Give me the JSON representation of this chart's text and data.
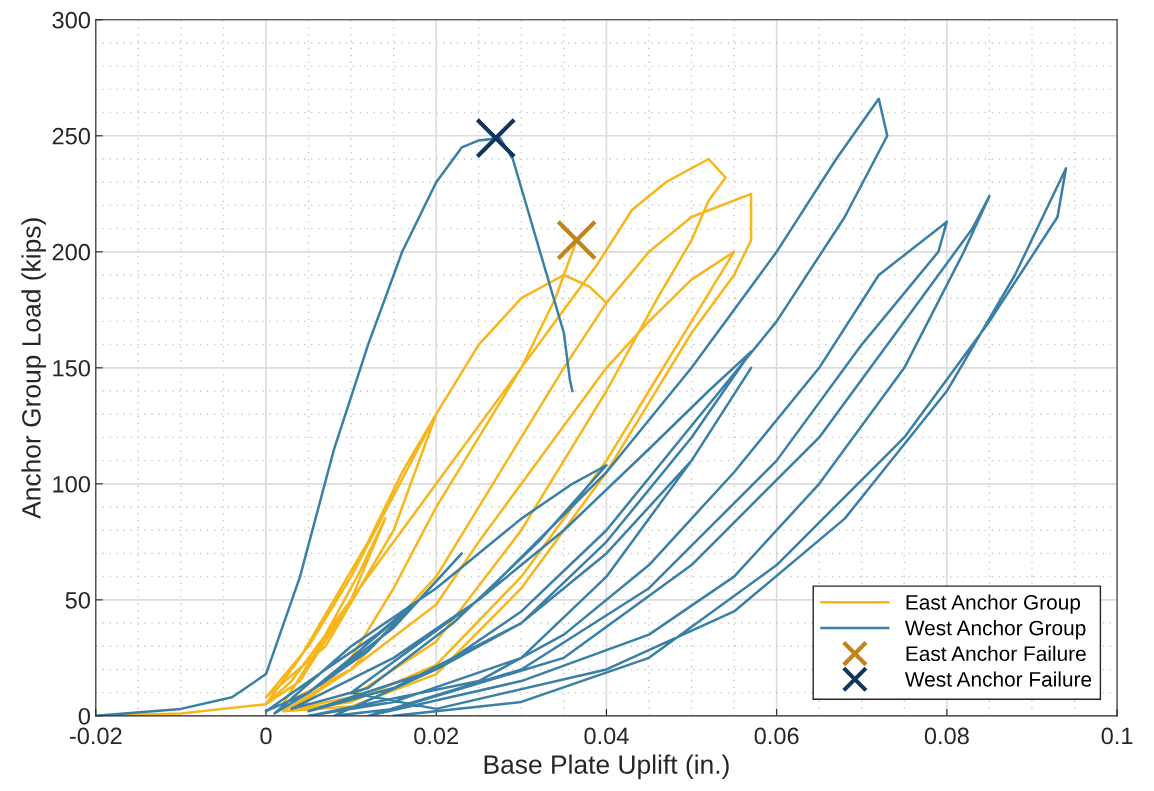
{
  "chart_data": {
    "type": "line",
    "xlabel": "Base Plate Uplift (in.)",
    "ylabel": "Anchor Group Load (kips)",
    "xlim": [
      -0.02,
      0.1
    ],
    "xticks": [
      -0.02,
      0,
      0.02,
      0.04,
      0.06,
      0.08,
      0.1
    ],
    "ylim": [
      0,
      300
    ],
    "yticks": [
      0,
      50,
      100,
      150,
      200,
      250,
      300
    ],
    "grid": true,
    "legend": "bottom right",
    "series": [
      {
        "name": "East Anchor Group",
        "color": "#f7b61c",
        "marker": "none",
        "x": [
          -0.02,
          -0.01,
          0,
          0.003,
          0.007,
          0.011,
          0.014,
          0.01,
          0.004,
          0,
          0.004,
          0.008,
          0.012,
          0.016,
          0.02,
          0.015,
          0.007,
          0,
          0.005,
          0.01,
          0.015,
          0.02,
          0.025,
          0.03,
          0.035,
          0.038,
          0.04,
          0.035,
          0.03,
          0.02,
          0.01,
          0.002,
          0.008,
          0.015,
          0.02,
          0.025,
          0.03,
          0.035,
          0.039,
          0.043,
          0.047,
          0.05,
          0.052,
          0.054,
          0.052,
          0.05,
          0.046,
          0.04,
          0.035,
          0.03,
          0.02,
          0.01,
          0.003,
          0.01,
          0.02,
          0.025,
          0.03,
          0.035,
          0.04,
          0.045,
          0.05,
          0.057,
          0.057,
          0.055,
          0.05,
          0.045,
          0.04,
          0.03,
          0.02,
          0.01,
          0.002,
          0.01,
          0.02,
          0.025,
          0.03,
          0.035,
          0.04,
          0.045,
          0.05,
          0.055,
          0.05,
          0.045,
          0.04,
          0.03,
          0.02,
          0.01,
          0.004,
          0.01,
          0.015,
          0.02,
          0.025,
          0.03,
          0.034,
          0.0365
        ],
        "values": [
          0,
          1,
          5,
          15,
          35,
          62,
          85,
          50,
          15,
          5,
          25,
          50,
          75,
          105,
          130,
          80,
          30,
          8,
          30,
          60,
          95,
          130,
          160,
          180,
          190,
          185,
          178,
          150,
          120,
          60,
          20,
          5,
          40,
          75,
          100,
          125,
          150,
          175,
          195,
          218,
          230,
          236,
          240,
          232,
          222,
          205,
          180,
          140,
          110,
          80,
          32,
          8,
          3,
          20,
          60,
          90,
          120,
          150,
          178,
          200,
          215,
          225,
          205,
          190,
          165,
          135,
          105,
          55,
          18,
          4,
          2,
          20,
          48,
          75,
          100,
          125,
          150,
          170,
          188,
          200,
          170,
          140,
          110,
          60,
          22,
          6,
          3,
          25,
          55,
          90,
          120,
          150,
          180,
          205
        ]
      },
      {
        "name": "West Anchor Group",
        "color": "#3a7fa5",
        "marker": "none",
        "x": [
          0,
          0.005,
          0.01,
          0.017,
          0.012,
          0.005,
          0,
          0.007,
          0.013,
          0.018,
          0.023,
          0.015,
          0.005,
          0.001,
          0.01,
          0.02,
          0.03,
          0.036,
          0.04,
          0.032,
          0.022,
          0.012,
          0.003,
          0.015,
          0.025,
          0.035,
          0.045,
          0.052,
          0.057,
          0.05,
          0.04,
          0.03,
          0.015,
          0.005,
          0.02,
          0.03,
          0.04,
          0.05,
          0.057,
          0.05,
          0.04,
          0.03,
          0.015,
          0.005,
          0.025,
          0.035,
          0.045,
          0.055,
          0.065,
          0.072,
          0.079,
          0.08,
          0.079,
          0.07,
          0.06,
          0.045,
          0.03,
          0.012,
          0.03,
          0.045,
          0.055,
          0.065,
          0.075,
          0.082,
          0.085,
          0.083,
          0.075,
          0.065,
          0.05,
          0.035,
          0.015,
          0.008,
          0.02,
          0.03,
          0.04,
          0.05,
          0.06,
          0.068,
          0.073,
          0.072,
          0.067,
          0.06,
          0.05,
          0.04,
          0.025,
          0.01,
          0.02,
          0.04,
          0.055,
          0.068,
          0.08,
          0.088,
          0.094,
          0.093,
          0.085,
          0.075,
          0.06,
          0.045,
          0.03,
          0.015,
          null,
          -0.02,
          -0.01,
          -0.004,
          0,
          0.004,
          0.008,
          0.012,
          0.016,
          0.02,
          0.023,
          0.025,
          0.0275,
          0.029,
          0.031,
          0.033,
          0.035,
          0.0357,
          0.036
        ],
        "values": [
          2,
          10,
          25,
          47,
          28,
          10,
          2,
          20,
          35,
          50,
          70,
          38,
          10,
          1,
          30,
          55,
          85,
          100,
          108,
          75,
          40,
          12,
          3,
          25,
          50,
          80,
          115,
          140,
          157,
          120,
          75,
          40,
          12,
          2,
          20,
          40,
          70,
          110,
          150,
          110,
          60,
          25,
          6,
          0,
          15,
          35,
          65,
          105,
          150,
          190,
          210,
          213,
          200,
          160,
          110,
          55,
          20,
          0,
          15,
          35,
          60,
          100,
          150,
          200,
          224,
          210,
          170,
          120,
          65,
          25,
          3,
          0,
          20,
          45,
          80,
          125,
          170,
          215,
          250,
          266,
          240,
          200,
          150,
          105,
          50,
          10,
          3,
          20,
          45,
          85,
          140,
          190,
          236,
          215,
          170,
          120,
          65,
          25,
          6,
          0,
          null,
          0,
          3,
          8,
          18,
          60,
          115,
          160,
          200,
          230,
          245,
          248,
          249,
          240,
          215,
          190,
          165,
          145,
          140
        ]
      },
      {
        "name": "East Anchor Failure",
        "color": "#c2841a",
        "type": "scatter",
        "marker": "cross",
        "x": [
          0.0365
        ],
        "values": [
          205
        ]
      },
      {
        "name": "West Anchor Failure",
        "color": "#0f365e",
        "type": "scatter",
        "marker": "cross",
        "x": [
          0.027
        ],
        "values": [
          249
        ]
      }
    ]
  }
}
